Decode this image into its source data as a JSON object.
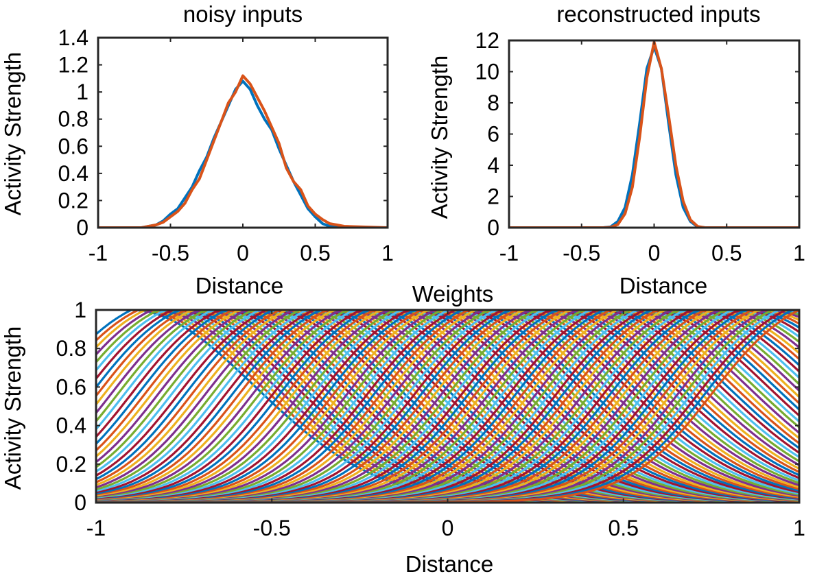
{
  "chart_data": [
    {
      "type": "line",
      "title": "noisy inputs",
      "xlabel": "Distance",
      "ylabel": "Activity Strength",
      "xlim": [
        -1,
        1
      ],
      "ylim": [
        0,
        1.4
      ],
      "xticks": [
        -1,
        -0.5,
        0,
        0.5,
        1
      ],
      "xtick_labels": [
        "-1",
        "-0.5",
        "0",
        "0.5",
        "1"
      ],
      "yticks": [
        0,
        0.2,
        0.4,
        0.6,
        0.8,
        1,
        1.2,
        1.4
      ],
      "ytick_labels": [
        "0",
        "0.2",
        "0.4",
        "0.6",
        "0.8",
        "1",
        "1.2",
        "1.4"
      ],
      "grid": false,
      "series": [
        {
          "color": "#0072BD",
          "x": [
            -1,
            -0.7,
            -0.65,
            -0.6,
            -0.55,
            -0.5,
            -0.45,
            -0.4,
            -0.35,
            -0.3,
            -0.25,
            -0.2,
            -0.15,
            -0.1,
            -0.05,
            0,
            0.05,
            0.1,
            0.15,
            0.2,
            0.25,
            0.3,
            0.35,
            0.4,
            0.45,
            0.5,
            0.55,
            0.6,
            0.65,
            0.7,
            1
          ],
          "y": [
            0,
            0,
            0.01,
            0.02,
            0.05,
            0.1,
            0.14,
            0.22,
            0.3,
            0.42,
            0.52,
            0.66,
            0.78,
            0.9,
            1.02,
            1.08,
            1.02,
            0.9,
            0.8,
            0.72,
            0.58,
            0.46,
            0.34,
            0.24,
            0.14,
            0.08,
            0.03,
            0.01,
            0.01,
            0,
            0
          ]
        },
        {
          "color": "#D95319",
          "x": [
            -1,
            -0.7,
            -0.65,
            -0.6,
            -0.55,
            -0.5,
            -0.45,
            -0.4,
            -0.35,
            -0.3,
            -0.25,
            -0.2,
            -0.15,
            -0.1,
            -0.05,
            0,
            0.05,
            0.1,
            0.15,
            0.2,
            0.25,
            0.3,
            0.35,
            0.4,
            0.45,
            0.5,
            0.55,
            0.6,
            0.65,
            0.7,
            1
          ],
          "y": [
            0,
            0,
            0.01,
            0.02,
            0.04,
            0.08,
            0.12,
            0.18,
            0.28,
            0.36,
            0.5,
            0.64,
            0.78,
            0.92,
            1.0,
            1.12,
            1.06,
            0.96,
            0.86,
            0.74,
            0.62,
            0.44,
            0.34,
            0.28,
            0.16,
            0.1,
            0.06,
            0.03,
            0.02,
            0.01,
            0
          ]
        }
      ]
    },
    {
      "type": "line",
      "title": "reconstructed inputs",
      "xlabel": "Distance",
      "ylabel": "Activity Strength",
      "xlim": [
        -1,
        1
      ],
      "ylim": [
        0,
        12
      ],
      "xticks": [
        -1,
        -0.5,
        0,
        0.5,
        1
      ],
      "xtick_labels": [
        "-1",
        "-0.5",
        "0",
        "0.5",
        "1"
      ],
      "yticks": [
        0,
        2,
        4,
        6,
        8,
        10,
        12
      ],
      "ytick_labels": [
        "0",
        "2",
        "4",
        "6",
        "8",
        "10",
        "12"
      ],
      "grid": false,
      "series": [
        {
          "color": "#0072BD",
          "x": [
            -1,
            -0.35,
            -0.3,
            -0.25,
            -0.2,
            -0.15,
            -0.1,
            -0.05,
            0,
            0.05,
            0.1,
            0.15,
            0.2,
            0.25,
            0.3,
            0.35,
            1
          ],
          "y": [
            0,
            0,
            0.05,
            0.4,
            1.3,
            3.4,
            6.7,
            10.2,
            11.6,
            10.2,
            6.7,
            3.4,
            1.3,
            0.4,
            0.05,
            0,
            0
          ]
        },
        {
          "color": "#D95319",
          "x": [
            -1,
            -0.35,
            -0.3,
            -0.25,
            -0.2,
            -0.15,
            -0.1,
            -0.05,
            0,
            0.05,
            0.1,
            0.15,
            0.2,
            0.25,
            0.3,
            0.35,
            1
          ],
          "y": [
            0,
            0,
            0.02,
            0.2,
            0.9,
            2.6,
            5.8,
            9.6,
            11.9,
            10.2,
            7.2,
            4.0,
            1.7,
            0.5,
            0.08,
            0,
            0
          ]
        }
      ]
    },
    {
      "type": "line",
      "title": "Weights",
      "xlabel": "Distance",
      "ylabel": "Activity Strength",
      "xlim": [
        -1,
        1
      ],
      "ylim": [
        0,
        1
      ],
      "xticks": [
        -1,
        -0.5,
        0,
        0.5,
        1
      ],
      "xtick_labels": [
        "-1",
        "-0.5",
        "0",
        "0.5",
        "1"
      ],
      "yticks": [
        0,
        0.2,
        0.4,
        0.6,
        0.8,
        1
      ],
      "ytick_labels": [
        "0",
        "0.2",
        "0.4",
        "0.6",
        "0.8",
        "1"
      ],
      "grid": false,
      "series_family": {
        "count": 100,
        "description_shape": "sigmoid rises reaching 1 at increasing x; last curve rises from ~0.4 to 1 at x=1",
        "center_first": -1.15,
        "center_last": 0.75,
        "width": 0.12,
        "colors": [
          "#0072BD",
          "#D95319",
          "#EDB120",
          "#7E2F8E",
          "#77AC30",
          "#4DBEEE",
          "#A2142F"
        ]
      }
    }
  ]
}
